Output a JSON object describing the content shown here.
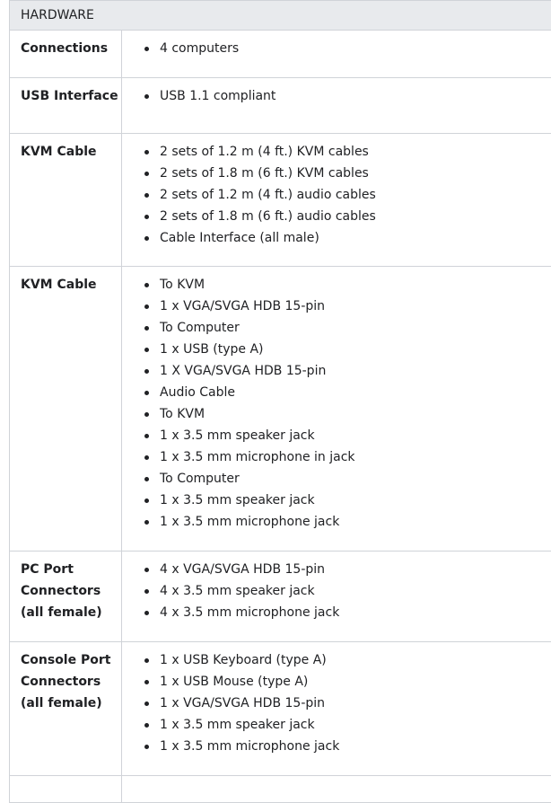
{
  "section_title": "HARDWARE",
  "rows": [
    {
      "label": "Connections",
      "items": [
        "4 computers"
      ]
    },
    {
      "label": "USB Interface",
      "items": [
        "USB 1.1 compliant"
      ]
    },
    {
      "label": "KVM Cable",
      "items": [
        "2 sets of 1.2 m (4 ft.) KVM cables",
        "2 sets of 1.8 m (6 ft.) KVM cables",
        "2 sets of 1.2 m (4 ft.) audio cables",
        "2 sets of 1.8 m (6 ft.) audio cables",
        "Cable Interface (all male)"
      ]
    },
    {
      "label": "KVM Cable",
      "items": [
        "To KVM",
        "1 x VGA/SVGA HDB 15-pin",
        "To Computer",
        "1 x USB (type A)",
        "1 X VGA/SVGA HDB 15-pin",
        "Audio Cable",
        "To KVM",
        "1 x 3.5 mm speaker jack",
        "1 x 3.5 mm microphone in jack",
        "To Computer",
        "1 x 3.5 mm speaker jack",
        "1 x 3.5 mm microphone jack"
      ]
    },
    {
      "label": "PC Port Connectors (all female)",
      "items": [
        "4 x VGA/SVGA HDB 15-pin",
        "4 x 3.5 mm speaker jack",
        "4 x 3.5 mm microphone jack"
      ]
    },
    {
      "label": "Console Port Connectors (all female)",
      "items": [
        "1 x USB Keyboard (type A)",
        "1 x USB Mouse (type A)",
        "1 x VGA/SVGA HDB 15-pin",
        "1 x 3.5 mm speaker jack",
        "1 x 3.5 mm microphone jack"
      ]
    }
  ]
}
